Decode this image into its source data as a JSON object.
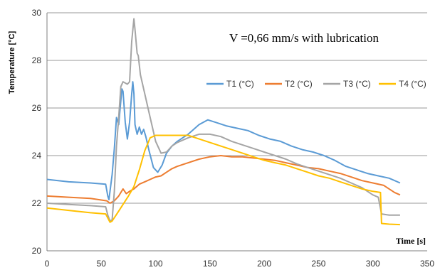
{
  "chart_data": {
    "type": "line",
    "annotation": "V =0,66 mm/s with lubrication",
    "xlabel": "Time [s]",
    "ylabel": "Temperature [°C]",
    "xlim": [
      0,
      350
    ],
    "ylim": [
      20,
      30
    ],
    "xticks": [
      0,
      50,
      100,
      150,
      200,
      250,
      300,
      350
    ],
    "yticks": [
      20,
      22,
      24,
      26,
      28,
      30
    ],
    "grid": "horizontal",
    "legend_position": "right, below annotation",
    "series": [
      {
        "name": "T1 (°C)",
        "color": "#5b9bd5",
        "points": [
          [
            0,
            23.0
          ],
          [
            20,
            22.9
          ],
          [
            40,
            22.85
          ],
          [
            54,
            22.8
          ],
          [
            56,
            22.3
          ],
          [
            57,
            22.15
          ],
          [
            58,
            22.5
          ],
          [
            60,
            23.2
          ],
          [
            62,
            24.3
          ],
          [
            64,
            25.6
          ],
          [
            66,
            25.3
          ],
          [
            68,
            26.3
          ],
          [
            69,
            26.8
          ],
          [
            70,
            26.7
          ],
          [
            72,
            25.4
          ],
          [
            74,
            24.7
          ],
          [
            76,
            25.4
          ],
          [
            78,
            26.6
          ],
          [
            79,
            27.1
          ],
          [
            80,
            26.6
          ],
          [
            81,
            25.3
          ],
          [
            83,
            24.9
          ],
          [
            85,
            25.2
          ],
          [
            87,
            24.9
          ],
          [
            89,
            25.1
          ],
          [
            91,
            24.8
          ],
          [
            94,
            24.2
          ],
          [
            98,
            23.5
          ],
          [
            102,
            23.3
          ],
          [
            106,
            23.6
          ],
          [
            110,
            24.1
          ],
          [
            115,
            24.4
          ],
          [
            120,
            24.6
          ],
          [
            130,
            24.9
          ],
          [
            140,
            25.3
          ],
          [
            148,
            25.5
          ],
          [
            155,
            25.4
          ],
          [
            165,
            25.25
          ],
          [
            175,
            25.15
          ],
          [
            185,
            25.05
          ],
          [
            195,
            24.85
          ],
          [
            205,
            24.7
          ],
          [
            215,
            24.6
          ],
          [
            225,
            24.4
          ],
          [
            235,
            24.25
          ],
          [
            245,
            24.15
          ],
          [
            255,
            24.0
          ],
          [
            265,
            23.8
          ],
          [
            275,
            23.55
          ],
          [
            285,
            23.4
          ],
          [
            295,
            23.25
          ],
          [
            305,
            23.15
          ],
          [
            315,
            23.05
          ],
          [
            325,
            22.85
          ]
        ]
      },
      {
        "name": "T2 (°C)",
        "color": "#ed7d31",
        "points": [
          [
            0,
            22.3
          ],
          [
            20,
            22.25
          ],
          [
            40,
            22.2
          ],
          [
            55,
            22.1
          ],
          [
            58,
            22.0
          ],
          [
            62,
            22.1
          ],
          [
            66,
            22.3
          ],
          [
            70,
            22.6
          ],
          [
            73,
            22.4
          ],
          [
            76,
            22.5
          ],
          [
            80,
            22.6
          ],
          [
            85,
            22.8
          ],
          [
            90,
            22.9
          ],
          [
            95,
            23.0
          ],
          [
            100,
            23.1
          ],
          [
            105,
            23.15
          ],
          [
            110,
            23.3
          ],
          [
            115,
            23.45
          ],
          [
            120,
            23.55
          ],
          [
            130,
            23.7
          ],
          [
            140,
            23.85
          ],
          [
            150,
            23.95
          ],
          [
            160,
            24.0
          ],
          [
            170,
            23.95
          ],
          [
            180,
            23.95
          ],
          [
            190,
            23.9
          ],
          [
            200,
            23.85
          ],
          [
            210,
            23.8
          ],
          [
            220,
            23.7
          ],
          [
            230,
            23.6
          ],
          [
            240,
            23.5
          ],
          [
            250,
            23.45
          ],
          [
            260,
            23.35
          ],
          [
            270,
            23.25
          ],
          [
            280,
            23.1
          ],
          [
            290,
            22.95
          ],
          [
            300,
            22.85
          ],
          [
            310,
            22.75
          ],
          [
            320,
            22.45
          ],
          [
            325,
            22.35
          ]
        ]
      },
      {
        "name": "T3 (°C)",
        "color": "#a5a5a5",
        "points": [
          [
            0,
            22.0
          ],
          [
            20,
            21.95
          ],
          [
            40,
            21.9
          ],
          [
            54,
            21.85
          ],
          [
            56,
            21.5
          ],
          [
            58,
            21.25
          ],
          [
            60,
            21.3
          ],
          [
            62,
            22.5
          ],
          [
            64,
            24.4
          ],
          [
            66,
            25.6
          ],
          [
            68,
            26.9
          ],
          [
            70,
            27.1
          ],
          [
            74,
            27.0
          ],
          [
            76,
            27.1
          ],
          [
            78,
            28.8
          ],
          [
            80,
            29.75
          ],
          [
            81,
            29.3
          ],
          [
            83,
            28.3
          ],
          [
            84,
            28.2
          ],
          [
            86,
            27.4
          ],
          [
            90,
            26.6
          ],
          [
            95,
            25.6
          ],
          [
            100,
            24.6
          ],
          [
            105,
            24.1
          ],
          [
            110,
            24.15
          ],
          [
            115,
            24.4
          ],
          [
            120,
            24.55
          ],
          [
            130,
            24.75
          ],
          [
            140,
            24.9
          ],
          [
            150,
            24.9
          ],
          [
            160,
            24.8
          ],
          [
            170,
            24.6
          ],
          [
            180,
            24.45
          ],
          [
            190,
            24.3
          ],
          [
            200,
            24.15
          ],
          [
            210,
            24.0
          ],
          [
            220,
            23.85
          ],
          [
            230,
            23.65
          ],
          [
            240,
            23.5
          ],
          [
            250,
            23.35
          ],
          [
            260,
            23.2
          ],
          [
            270,
            23.05
          ],
          [
            280,
            22.85
          ],
          [
            290,
            22.65
          ],
          [
            300,
            22.35
          ],
          [
            305,
            22.25
          ],
          [
            308,
            21.55
          ],
          [
            315,
            21.5
          ],
          [
            325,
            21.5
          ]
        ]
      },
      {
        "name": "T4 (°C)",
        "color": "#ffc000",
        "points": [
          [
            0,
            21.8
          ],
          [
            20,
            21.7
          ],
          [
            40,
            21.6
          ],
          [
            54,
            21.55
          ],
          [
            58,
            21.2
          ],
          [
            60,
            21.25
          ],
          [
            65,
            21.6
          ],
          [
            70,
            21.95
          ],
          [
            75,
            22.3
          ],
          [
            80,
            22.7
          ],
          [
            85,
            23.4
          ],
          [
            90,
            24.2
          ],
          [
            95,
            24.75
          ],
          [
            100,
            24.85
          ],
          [
            110,
            24.85
          ],
          [
            120,
            24.85
          ],
          [
            130,
            24.85
          ],
          [
            140,
            24.7
          ],
          [
            150,
            24.55
          ],
          [
            160,
            24.4
          ],
          [
            170,
            24.25
          ],
          [
            180,
            24.1
          ],
          [
            190,
            23.95
          ],
          [
            200,
            23.8
          ],
          [
            210,
            23.7
          ],
          [
            220,
            23.6
          ],
          [
            230,
            23.45
          ],
          [
            240,
            23.3
          ],
          [
            250,
            23.15
          ],
          [
            260,
            23.05
          ],
          [
            270,
            22.9
          ],
          [
            280,
            22.75
          ],
          [
            290,
            22.6
          ],
          [
            300,
            22.5
          ],
          [
            307,
            22.45
          ],
          [
            308,
            21.15
          ],
          [
            315,
            21.12
          ],
          [
            325,
            21.1
          ]
        ]
      }
    ]
  }
}
